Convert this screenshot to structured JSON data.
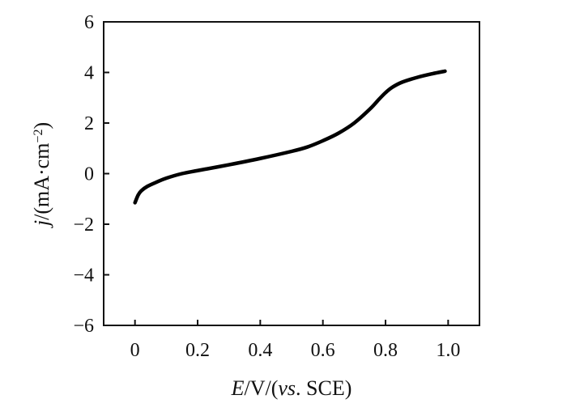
{
  "chart_data": {
    "type": "line",
    "xlabel": {
      "italic_symbol": "E",
      "unit": "/V/(",
      "italic_abbrev": "vs",
      "suffix": ". SCE)"
    },
    "ylabel": {
      "italic_symbol": "j",
      "unit": "/(mA·cm",
      "superscript": "−2",
      "suffix": ")"
    },
    "xlim": [
      -0.1,
      1.1
    ],
    "ylim": [
      -6,
      6
    ],
    "xticks": [
      {
        "value": 0.0,
        "label": "0"
      },
      {
        "value": 0.2,
        "label": "0.2"
      },
      {
        "value": 0.4,
        "label": "0.4"
      },
      {
        "value": 0.6,
        "label": "0.6"
      },
      {
        "value": 0.8,
        "label": "0.8"
      },
      {
        "value": 1.0,
        "label": "1.0"
      }
    ],
    "yticks": [
      {
        "value": 6,
        "label": "6"
      },
      {
        "value": 4,
        "label": "4"
      },
      {
        "value": 2,
        "label": "2"
      },
      {
        "value": 0,
        "label": "0"
      },
      {
        "value": -2,
        "label": "−2"
      },
      {
        "value": -4,
        "label": "−4"
      },
      {
        "value": -6,
        "label": "−6"
      }
    ],
    "grid": false,
    "series": [
      {
        "color": "#000000",
        "x": [
          0.0,
          0.01,
          0.02,
          0.04,
          0.07,
          0.1,
          0.15,
          0.2,
          0.3,
          0.4,
          0.5,
          0.55,
          0.6,
          0.65,
          0.7,
          0.75,
          0.78,
          0.8,
          0.82,
          0.85,
          0.9,
          0.95,
          0.99
        ],
        "y": [
          -1.15,
          -0.85,
          -0.68,
          -0.5,
          -0.33,
          -0.18,
          0.0,
          0.12,
          0.35,
          0.6,
          0.88,
          1.05,
          1.3,
          1.6,
          2.0,
          2.55,
          2.95,
          3.2,
          3.4,
          3.6,
          3.8,
          3.95,
          4.05
        ]
      }
    ]
  }
}
